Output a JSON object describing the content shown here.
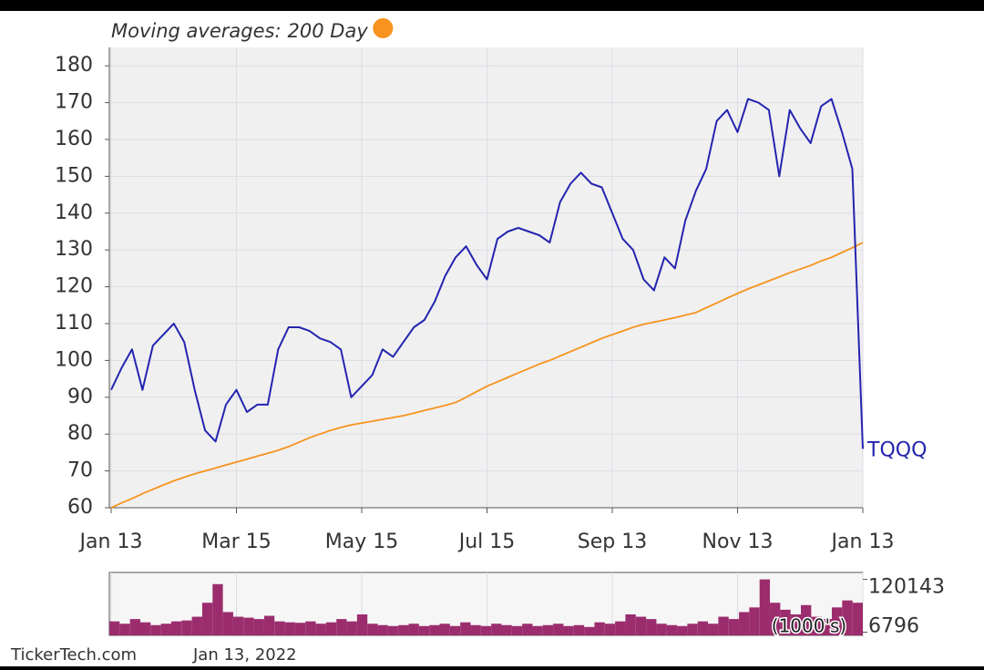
{
  "chart_data": [
    {
      "type": "line",
      "legend_title": "Moving averages:",
      "categories": [
        "Jan 13",
        null,
        null,
        null,
        null,
        null,
        null,
        null,
        null,
        null,
        null,
        null,
        "Mar 15",
        null,
        null,
        null,
        null,
        null,
        null,
        null,
        null,
        null,
        null,
        null,
        "May 15",
        null,
        null,
        null,
        null,
        null,
        null,
        null,
        null,
        null,
        null,
        null,
        "Jul 15",
        null,
        null,
        null,
        null,
        null,
        null,
        null,
        null,
        null,
        null,
        null,
        "Sep 13",
        null,
        null,
        null,
        null,
        null,
        null,
        null,
        null,
        null,
        null,
        null,
        "Nov 13",
        null,
        null,
        null,
        null,
        null,
        null,
        null,
        null,
        null,
        null,
        null,
        "Jan 13"
      ],
      "series": [
        {
          "name": "TQQQ",
          "color": "#2424b0",
          "values": [
            92,
            98,
            103,
            92,
            104,
            107,
            110,
            105,
            92,
            81,
            78,
            88,
            92,
            86,
            88,
            88,
            103,
            109,
            109,
            108,
            106,
            105,
            103,
            90,
            93,
            96,
            103,
            101,
            105,
            109,
            111,
            116,
            123,
            128,
            131,
            126,
            122,
            133,
            135,
            136,
            135,
            134,
            132,
            143,
            148,
            151,
            148,
            147,
            140,
            133,
            130,
            122,
            119,
            128,
            125,
            138,
            146,
            152,
            165,
            168,
            162,
            171,
            170,
            168,
            150,
            168,
            163,
            159,
            169,
            171,
            162,
            152,
            76
          ]
        },
        {
          "name": "200 Day",
          "color": "#f7931e",
          "values": [
            60,
            61.3,
            62.5,
            63.8,
            65,
            66.2,
            67.3,
            68.3,
            69.2,
            70,
            70.8,
            71.6,
            72.4,
            73.2,
            74,
            74.8,
            75.6,
            76.6,
            77.8,
            79,
            80,
            81,
            81.8,
            82.5,
            83,
            83.5,
            84,
            84.5,
            85,
            85.7,
            86.4,
            87.1,
            87.8,
            88.6,
            90,
            91.5,
            93,
            94.2,
            95.4,
            96.6,
            97.8,
            99,
            100,
            101.2,
            102.4,
            103.6,
            104.8,
            106,
            107,
            108,
            109,
            109.8,
            110.4,
            111,
            111.6,
            112.3,
            113,
            114.3,
            115.6,
            116.9,
            118.2,
            119.4,
            120.5,
            121.6,
            122.7,
            123.8,
            124.8,
            125.8,
            127,
            128,
            129.3,
            130.6,
            132
          ]
        }
      ],
      "ylim": [
        60,
        185
      ],
      "yticks": [
        60,
        70,
        80,
        90,
        100,
        110,
        120,
        130,
        140,
        150,
        160,
        170,
        180
      ],
      "grid": true
    },
    {
      "type": "bar",
      "ylabel": "(1000's)",
      "color": "#9b2d6e",
      "values": [
        30000,
        25000,
        35000,
        28000,
        22000,
        25000,
        30000,
        32000,
        40000,
        70000,
        110000,
        50000,
        40000,
        38000,
        35000,
        42000,
        30000,
        28000,
        27000,
        30000,
        25000,
        28000,
        35000,
        30000,
        45000,
        25000,
        22000,
        20000,
        22000,
        25000,
        20000,
        22000,
        25000,
        20000,
        28000,
        22000,
        20000,
        25000,
        22000,
        20000,
        25000,
        20000,
        22000,
        25000,
        20000,
        22000,
        18000,
        28000,
        25000,
        30000,
        45000,
        40000,
        35000,
        25000,
        22000,
        20000,
        25000,
        30000,
        25000,
        40000,
        35000,
        50000,
        60000,
        120143,
        70000,
        55000,
        45000,
        65000,
        40000,
        35000,
        60000,
        75000,
        70000
      ],
      "ylim": [
        0,
        135000
      ],
      "yticks": [
        6796,
        120143
      ],
      "grid": true
    }
  ],
  "footer": {
    "source": "TickerTech.com",
    "date": "Jan 13, 2022"
  }
}
